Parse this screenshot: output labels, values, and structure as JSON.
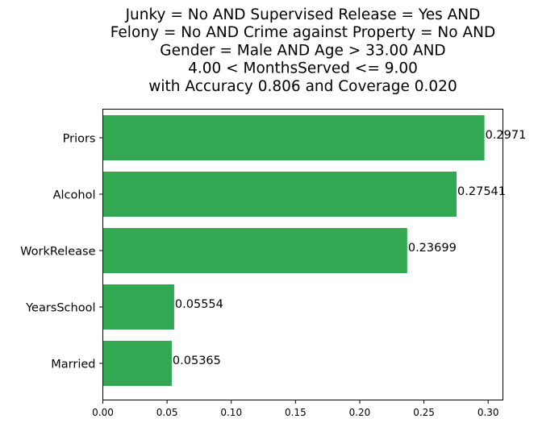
{
  "chart_data": {
    "type": "bar",
    "orientation": "horizontal",
    "title_lines": [
      "Junky = No AND Supervised Release = Yes AND",
      "Felony = No AND Crime against Property = No AND",
      "Gender = Male AND Age > 33.00 AND",
      "4.00 < MonthsServed <= 9.00",
      "with Accuracy 0.806 and Coverage 0.020"
    ],
    "categories": [
      "Priors",
      "Alcohol",
      "WorkRelease",
      "YearsSchool",
      "Married"
    ],
    "values": [
      0.2971,
      0.27541,
      0.23699,
      0.05554,
      0.05365
    ],
    "value_labels": [
      "0.2971",
      "0.27541",
      "0.23699",
      "0.05554",
      "0.05365"
    ],
    "xlim": [
      0,
      0.3115
    ],
    "xticks": [
      "0.00",
      "0.05",
      "0.10",
      "0.15",
      "0.20",
      "0.25",
      "0.30"
    ],
    "xtick_values": [
      0,
      0.05,
      0.1,
      0.15,
      0.2,
      0.25,
      0.3
    ],
    "xlabel": "",
    "ylabel": "",
    "grid": false,
    "bar_color": "#33a853"
  }
}
